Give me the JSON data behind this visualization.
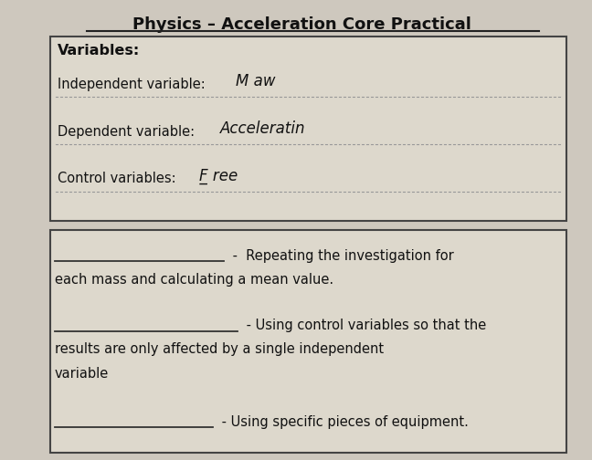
{
  "title": "Physics – Acceleration Core Practical",
  "bg_color": "#cec8be",
  "box_bg": "#ddd8cc",
  "box_border": "#444444",
  "title_fontsize": 13,
  "body_fontsize": 10.5,
  "handwriting_fontsize": 11,
  "variables_label": "Variables:",
  "indep_label": "Independent variable:",
  "indep_handwriting": "M aw",
  "dep_label": "Dependent variable:",
  "dep_handwriting": "Acceleratin",
  "ctrl_label": "Control variables:",
  "ctrl_handwriting": "F̲ ree",
  "b1_line": "_______________",
  "b1_text1": " -  Repeating the investigation for",
  "b1_text2": "each mass and calculating a mean value.",
  "b2_line": "________________",
  "b2_text1": " - Using control variables so that the",
  "b2_text2": "results are only affected by a single independent",
  "b2_text3": "variable",
  "b3_line": "______________",
  "b3_text1": " - Using specific pieces of equipment."
}
